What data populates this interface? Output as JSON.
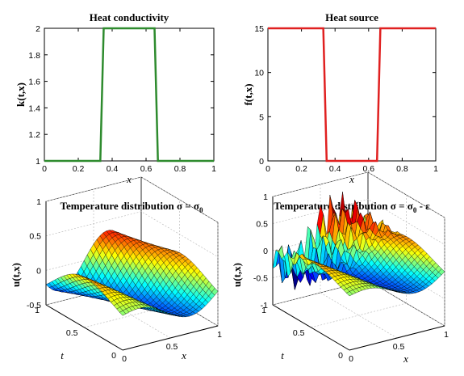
{
  "chart_data": [
    {
      "type": "line",
      "title": "Heat conductivity",
      "xlabel": "x",
      "ylabel": "k(t,x)",
      "xlim": [
        0,
        1
      ],
      "ylim": [
        1,
        2
      ],
      "xticks": [
        0,
        0.2,
        0.4,
        0.6,
        0.8,
        1
      ],
      "yticks": [
        1,
        1.2,
        1.4,
        1.6,
        1.8,
        2
      ],
      "xtick_labels": [
        "0",
        "0.2",
        "0.4",
        "0.6",
        "0.8",
        "1"
      ],
      "ytick_labels": [
        "1",
        "1.2",
        "1.4",
        "1.6",
        "1.8",
        "2"
      ],
      "series": [
        {
          "color": "#2e8b2e",
          "x": [
            0,
            0.33,
            0.35,
            0.65,
            0.67,
            1
          ],
          "y": [
            1,
            1,
            2,
            2,
            1,
            1
          ]
        }
      ]
    },
    {
      "type": "line",
      "title": "Heat source",
      "xlabel": "x",
      "ylabel": "f(t,x)",
      "xlim": [
        0,
        1
      ],
      "ylim": [
        0,
        15
      ],
      "xticks": [
        0,
        0.2,
        0.4,
        0.6,
        0.8,
        1
      ],
      "yticks": [
        0,
        5,
        10,
        15
      ],
      "xtick_labels": [
        "0",
        "0.2",
        "0.4",
        "0.6",
        "0.8",
        "1"
      ],
      "ytick_labels": [
        "0",
        "5",
        "10",
        "15"
      ],
      "series": [
        {
          "color": "#e02020",
          "x": [
            0,
            0.33,
            0.35,
            0.65,
            0.67,
            1
          ],
          "y": [
            15,
            15,
            0,
            0,
            15,
            15
          ]
        }
      ]
    },
    {
      "type": "surface",
      "title": "Temperature distribution σ = σ",
      "title_sub": "0",
      "title_tail": "",
      "xlabel": "x",
      "ylabel": "t",
      "zlabel": "u(t,x)",
      "xlim": [
        0,
        1
      ],
      "ylim": [
        0,
        1
      ],
      "zlim": [
        -0.5,
        1
      ],
      "xtick_labels": [
        "0",
        "0.5",
        "1"
      ],
      "ytick_labels": [
        "0",
        "0.5",
        "1"
      ],
      "ztick_labels": [
        "-0.5",
        "0",
        "0.5",
        "1"
      ],
      "noisy": false
    },
    {
      "type": "surface",
      "title": "Temperature distribution σ = σ",
      "title_sub": "0",
      "title_tail": " - ε",
      "xlabel": "x",
      "ylabel": "t",
      "zlabel": "u(t,x)",
      "xlim": [
        0,
        1
      ],
      "ylim": [
        0,
        1
      ],
      "zlim": [
        -1,
        1
      ],
      "xtick_labels": [
        "0",
        "0.5",
        "1"
      ],
      "ytick_labels": [
        "0",
        "0.5",
        "1"
      ],
      "ztick_labels": [
        "-1",
        "-0.5",
        "0",
        "0.5",
        "1"
      ],
      "noisy": true
    }
  ]
}
